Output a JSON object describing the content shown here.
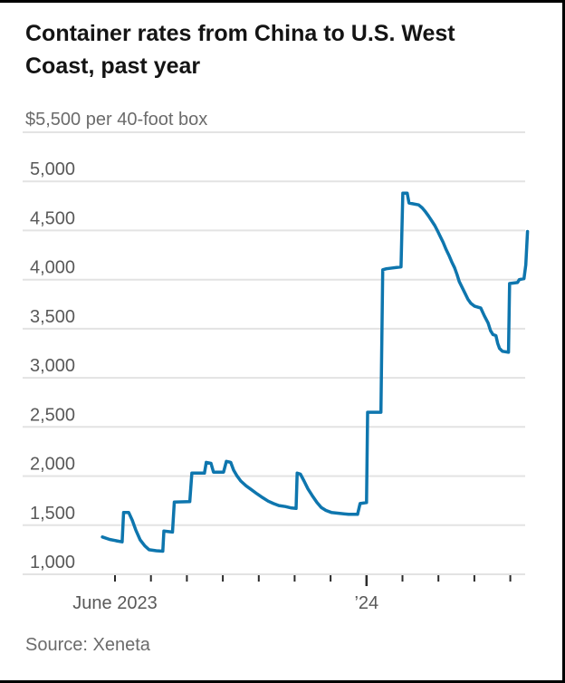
{
  "header": {
    "title": "Container rates from China to U.S. West Coast, past year"
  },
  "source": {
    "label": "Source: Xeneta"
  },
  "chart_data": {
    "type": "line",
    "title": "Container rates from China to U.S. West Coast, past year",
    "unit_label": "$5,500 per 40-foot box",
    "xlabel": "",
    "ylabel": "U.S. dollars per 40-foot box",
    "ylim": [
      1000,
      5500
    ],
    "grid": true,
    "legend": false,
    "grid_values": [
      5500,
      5000,
      4500,
      4000,
      3500,
      3000,
      2500,
      2000,
      1500,
      1000
    ],
    "yticks": [
      {
        "value": 5000,
        "label": "5,000"
      },
      {
        "value": 4500,
        "label": "4,500"
      },
      {
        "value": 4000,
        "label": "4,000"
      },
      {
        "value": 3500,
        "label": "3,500"
      },
      {
        "value": 3000,
        "label": "3,000"
      },
      {
        "value": 2500,
        "label": "2,500"
      },
      {
        "value": 2000,
        "label": "2,000"
      },
      {
        "value": 1500,
        "label": "1,500"
      },
      {
        "value": 1000,
        "label": "1,000"
      }
    ],
    "xticks": [
      {
        "month": 0,
        "label": "June 2023",
        "major": false
      },
      {
        "month": 1,
        "label": "",
        "major": false
      },
      {
        "month": 2,
        "label": "",
        "major": false
      },
      {
        "month": 3,
        "label": "",
        "major": false
      },
      {
        "month": 4,
        "label": "",
        "major": false
      },
      {
        "month": 5,
        "label": "",
        "major": false
      },
      {
        "month": 6,
        "label": "",
        "major": false
      },
      {
        "month": 7,
        "label": "’24",
        "major": true
      },
      {
        "month": 8,
        "label": "",
        "major": false
      },
      {
        "month": 9,
        "label": "",
        "major": false
      },
      {
        "month": 10,
        "label": "",
        "major": false
      },
      {
        "month": 11,
        "label": "",
        "major": false
      }
    ],
    "x_unit": "months_since_june_2023_tick",
    "line_color": "#0e76ae",
    "grid_color": "#e3e3e3",
    "tick_color": "#2b2b2b",
    "series": [
      {
        "name": "Container rate",
        "points": [
          [
            -0.35,
            1380
          ],
          [
            -0.15,
            1355
          ],
          [
            0.05,
            1340
          ],
          [
            0.2,
            1330
          ],
          [
            0.24,
            1630
          ],
          [
            0.38,
            1630
          ],
          [
            0.48,
            1550
          ],
          [
            0.58,
            1450
          ],
          [
            0.7,
            1350
          ],
          [
            0.83,
            1290
          ],
          [
            0.95,
            1250
          ],
          [
            1.15,
            1240
          ],
          [
            1.33,
            1235
          ],
          [
            1.36,
            1440
          ],
          [
            1.6,
            1430
          ],
          [
            1.65,
            1735
          ],
          [
            2.08,
            1740
          ],
          [
            2.14,
            2030
          ],
          [
            2.49,
            2030
          ],
          [
            2.54,
            2140
          ],
          [
            2.67,
            2130
          ],
          [
            2.74,
            2040
          ],
          [
            3.02,
            2040
          ],
          [
            3.1,
            2150
          ],
          [
            3.22,
            2140
          ],
          [
            3.3,
            2060
          ],
          [
            3.4,
            2000
          ],
          [
            3.5,
            1950
          ],
          [
            3.65,
            1900
          ],
          [
            3.8,
            1860
          ],
          [
            3.95,
            1820
          ],
          [
            4.11,
            1780
          ],
          [
            4.26,
            1745
          ],
          [
            4.41,
            1720
          ],
          [
            4.56,
            1700
          ],
          [
            4.74,
            1690
          ],
          [
            4.91,
            1675
          ],
          [
            5.04,
            1670
          ],
          [
            5.07,
            2030
          ],
          [
            5.16,
            2020
          ],
          [
            5.26,
            1950
          ],
          [
            5.37,
            1870
          ],
          [
            5.49,
            1800
          ],
          [
            5.62,
            1730
          ],
          [
            5.74,
            1680
          ],
          [
            5.87,
            1650
          ],
          [
            6.02,
            1630
          ],
          [
            6.25,
            1620
          ],
          [
            6.5,
            1610
          ],
          [
            6.75,
            1610
          ],
          [
            6.82,
            1720
          ],
          [
            7.0,
            1730
          ],
          [
            7.03,
            2650
          ],
          [
            7.4,
            2650
          ],
          [
            7.45,
            4100
          ],
          [
            7.55,
            4110
          ],
          [
            7.75,
            4120
          ],
          [
            7.96,
            4130
          ],
          [
            8.01,
            4880
          ],
          [
            8.13,
            4880
          ],
          [
            8.18,
            4780
          ],
          [
            8.45,
            4760
          ],
          [
            8.55,
            4730
          ],
          [
            8.64,
            4690
          ],
          [
            8.72,
            4650
          ],
          [
            8.81,
            4600
          ],
          [
            8.9,
            4550
          ],
          [
            8.97,
            4500
          ],
          [
            9.05,
            4440
          ],
          [
            9.13,
            4380
          ],
          [
            9.21,
            4310
          ],
          [
            9.29,
            4250
          ],
          [
            9.37,
            4180
          ],
          [
            9.45,
            4120
          ],
          [
            9.52,
            4050
          ],
          [
            9.58,
            3980
          ],
          [
            9.66,
            3920
          ],
          [
            9.74,
            3860
          ],
          [
            9.82,
            3800
          ],
          [
            9.9,
            3760
          ],
          [
            10.0,
            3730
          ],
          [
            10.18,
            3710
          ],
          [
            10.28,
            3630
          ],
          [
            10.38,
            3560
          ],
          [
            10.45,
            3480
          ],
          [
            10.52,
            3440
          ],
          [
            10.6,
            3430
          ],
          [
            10.65,
            3350
          ],
          [
            10.7,
            3300
          ],
          [
            10.78,
            3270
          ],
          [
            10.95,
            3260
          ],
          [
            10.98,
            3960
          ],
          [
            11.2,
            3970
          ],
          [
            11.25,
            4000
          ],
          [
            11.38,
            4010
          ],
          [
            11.43,
            4150
          ],
          [
            11.48,
            4490
          ]
        ]
      }
    ]
  }
}
